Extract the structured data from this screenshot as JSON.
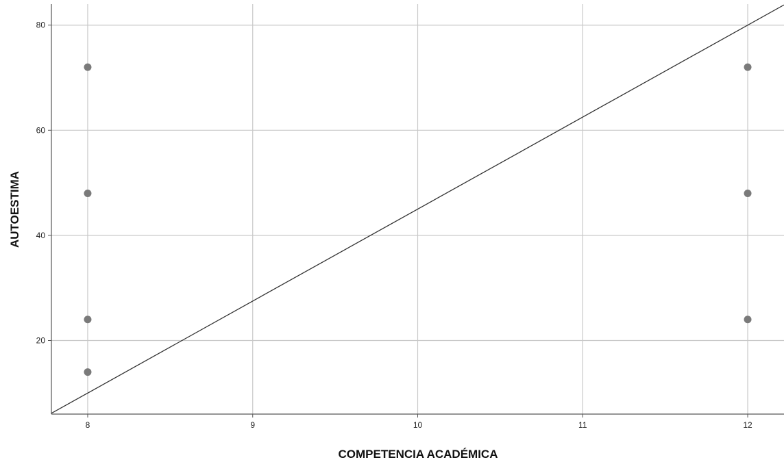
{
  "chart_data": {
    "type": "scatter",
    "xlabel": "COMPETENCIA ACADÉMICA",
    "ylabel": "AUTOESTIMA",
    "xlim": [
      7.78,
      12.22
    ],
    "ylim": [
      6,
      84
    ],
    "x_ticks": [
      8,
      9,
      10,
      11,
      12
    ],
    "y_ticks": [
      20,
      40,
      60,
      80
    ],
    "grid": true,
    "legend": "none",
    "points": [
      {
        "x": 8,
        "y": 72
      },
      {
        "x": 8,
        "y": 48
      },
      {
        "x": 8,
        "y": 24
      },
      {
        "x": 8,
        "y": 14
      },
      {
        "x": 12,
        "y": 72
      },
      {
        "x": 12,
        "y": 48
      },
      {
        "x": 12,
        "y": 24
      }
    ],
    "fit_line": {
      "x": [
        7.78,
        12.22
      ],
      "y": [
        6.15,
        83.85
      ]
    },
    "colors": {
      "points": "#7a7a7a",
      "grid": "#c8c8c8",
      "axis": "#555555",
      "line": "#333333"
    }
  }
}
